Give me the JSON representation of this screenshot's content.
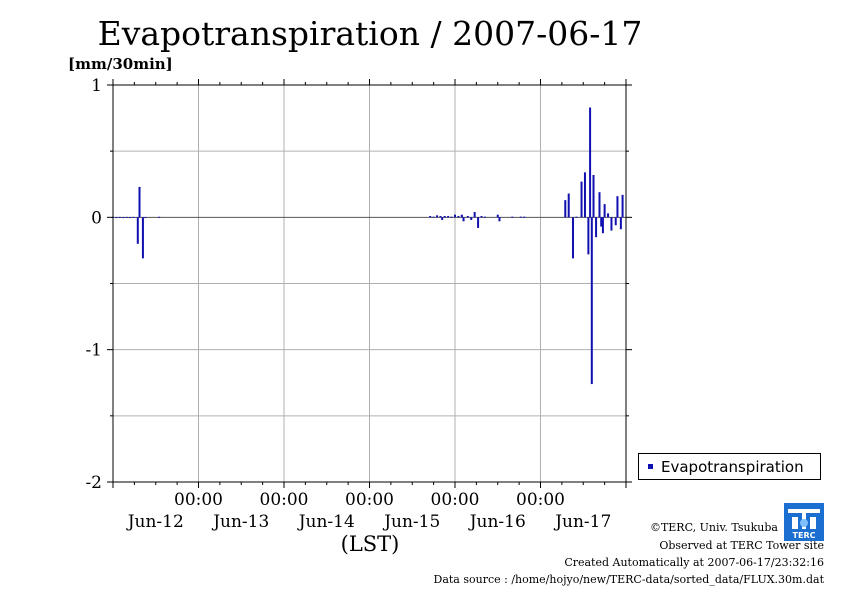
{
  "title": "Evapotranspiration / 2007-06-17",
  "legend": {
    "label": "Evapotranspiration",
    "color": "#1010b0"
  },
  "credits": {
    "line1": "©TERC, Univ. Tsukuba",
    "line2": "Observed at TERC Tower site",
    "line3": "Created Automatically at 2007-06-17/23:32:16",
    "line4": "Data source : /home/hojyo/new/TERC-data/sorted_data/FLUX.30m.dat"
  },
  "logo": {
    "text": "TERC",
    "color": "#1a6fd0"
  },
  "chart_data": {
    "type": "bar",
    "title": "Evapotranspiration / 2007-06-17",
    "ylabel": "[mm/30min]",
    "xlabel": "(LST)",
    "ylim": [
      -2,
      1
    ],
    "yticks": [
      -2,
      -1,
      0,
      1
    ],
    "ytick_labels": [
      "-2",
      "-1",
      "0",
      "1"
    ],
    "xlim_days": [
      0,
      6
    ],
    "xticks": [
      {
        "pos": 1,
        "time": "00:00",
        "date": "Jun-13"
      },
      {
        "pos": 2,
        "time": "00:00",
        "date": "Jun-14"
      },
      {
        "pos": 3,
        "time": "00:00",
        "date": "Jun-15"
      },
      {
        "pos": 4,
        "time": "00:00",
        "date": "Jun-16"
      },
      {
        "pos": 5,
        "time": "00:00",
        "date": "Jun-17"
      }
    ],
    "date_labels": [
      {
        "pos": 0.5,
        "text": "Jun-12"
      },
      {
        "pos": 1.5,
        "text": "Jun-13"
      },
      {
        "pos": 2.5,
        "text": "Jun-14"
      },
      {
        "pos": 3.5,
        "text": "Jun-15"
      },
      {
        "pos": 4.5,
        "text": "Jun-16"
      },
      {
        "pos": 5.5,
        "text": "Jun-17"
      }
    ],
    "grid": true,
    "legend_position": "right",
    "series": [
      {
        "name": "Evapotranspiration",
        "color": "#1010b0",
        "x_days": [
          0.0,
          0.04,
          0.08,
          0.12,
          0.16,
          0.2,
          0.24,
          0.29,
          0.31,
          0.35,
          0.38,
          0.54,
          3.71,
          3.75,
          3.79,
          3.83,
          3.85,
          3.88,
          3.92,
          3.96,
          4.0,
          4.04,
          4.08,
          4.1,
          4.15,
          4.19,
          4.23,
          4.27,
          4.31,
          4.35,
          4.5,
          4.52,
          4.67,
          4.77,
          4.81,
          5.29,
          5.33,
          5.38,
          5.42,
          5.48,
          5.52,
          5.56,
          5.58,
          5.6,
          5.62,
          5.65,
          5.69,
          5.71,
          5.73,
          5.75,
          5.79,
          5.83,
          5.88,
          5.9,
          5.94,
          5.96
        ],
        "values": [
          0.003,
          0.002,
          0.003,
          0.002,
          0.003,
          0.002,
          0.003,
          -0.2,
          0.23,
          -0.31,
          0.002,
          0.004,
          0.01,
          0.005,
          0.015,
          0.01,
          -0.02,
          0.01,
          0.01,
          0.005,
          0.02,
          0.01,
          0.02,
          -0.03,
          0.01,
          -0.02,
          0.04,
          -0.08,
          0.01,
          0.005,
          0.02,
          -0.03,
          0.005,
          0.005,
          0.005,
          0.13,
          0.18,
          -0.31,
          0.005,
          0.27,
          0.34,
          -0.28,
          0.83,
          -1.26,
          0.32,
          -0.15,
          0.19,
          -0.07,
          -0.12,
          0.1,
          0.03,
          -0.1,
          -0.06,
          0.16,
          -0.09,
          0.17
        ]
      }
    ]
  }
}
